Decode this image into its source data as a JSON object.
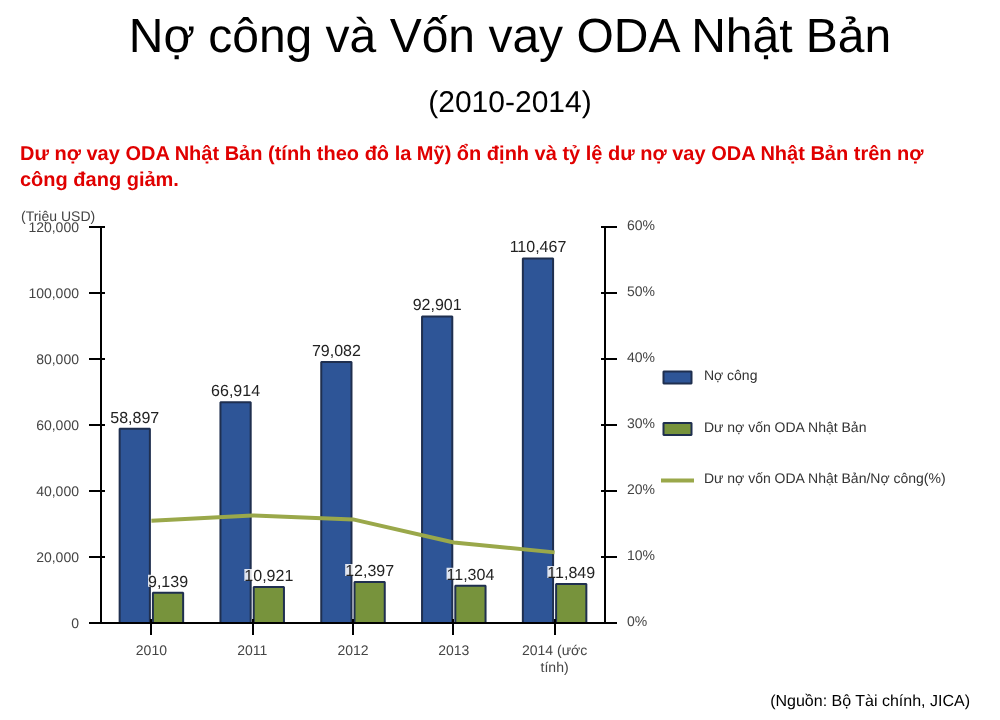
{
  "chart_data": {
    "type": "bar",
    "title": "Nợ công và Vốn vay ODA Nhật Bản",
    "subtitle": "(2010-2014)",
    "annotations": [
      "Dư nợ vay ODA Nhật Bản (tính theo đô la Mỹ) ổn định và tỷ lệ dư nợ vay ODA Nhật Bản trên nợ công đang giảm.",
      "(Nguồn: Bộ Tài chính, JICA)"
    ],
    "ylabel": "(Triệu USD)",
    "categories": [
      "2010",
      "2011",
      "2012",
      "2013",
      "2014 (ước tính)"
    ],
    "series": [
      {
        "name": "Nợ công",
        "color": "#2e5597",
        "values": [
          58897,
          66914,
          79082,
          92901,
          110467
        ],
        "value_labels": [
          "58,897",
          "66,914",
          "79,082",
          "92,901",
          "110,467"
        ]
      },
      {
        "name": "Dư nợ vốn ODA Nhật Bản",
        "color": "#77933c",
        "values": [
          9139,
          10921,
          12397,
          11304,
          11849
        ],
        "value_labels": [
          "9,139",
          "10,921",
          "12,397",
          "11,304",
          "11,849"
        ]
      },
      {
        "name": "Dư nợ vốn ODA Nhật Bản/Nợ công(%)",
        "type": "line",
        "axis": "y2",
        "color": "#9aa84a",
        "values": [
          15.5,
          16.3,
          15.7,
          12.2,
          10.7
        ]
      }
    ],
    "ylim": [
      0,
      120000
    ],
    "yticks": [
      {
        "value": 0,
        "label": "0"
      },
      {
        "value": 20000,
        "label": "20,000"
      },
      {
        "value": 40000,
        "label": "40,000"
      },
      {
        "value": 60000,
        "label": "60,000"
      },
      {
        "value": 80000,
        "label": "80,000"
      },
      {
        "value": 100000,
        "label": "100,000"
      },
      {
        "value": 120000,
        "label": "120,000"
      }
    ],
    "y2lim": [
      0,
      60
    ],
    "y2ticks": [
      {
        "value": 0,
        "label": "0%"
      },
      {
        "value": 10,
        "label": "10%"
      },
      {
        "value": 20,
        "label": "20%"
      },
      {
        "value": 30,
        "label": "30%"
      },
      {
        "value": 40,
        "label": "40%"
      },
      {
        "value": 50,
        "label": "50%"
      },
      {
        "value": 60,
        "label": "60%"
      }
    ],
    "legend": "right",
    "grid": false
  }
}
